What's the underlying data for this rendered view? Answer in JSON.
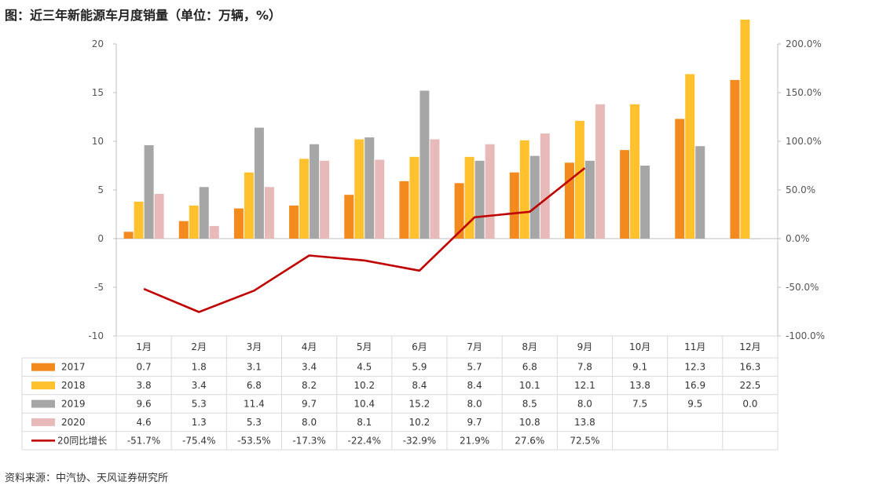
{
  "title": "图：近三年新能源车月度销量（单位：万辆，%）",
  "source": "资料来源：中汽协、天风证券研究所",
  "colors": {
    "2017": "#F28A1E",
    "2018": "#FFC12E",
    "2019": "#A6A6A6",
    "2020": "#E8B9B9",
    "line": "#C00000"
  },
  "chart_data": {
    "type": "bar",
    "categories": [
      "1月",
      "2月",
      "3月",
      "4月",
      "5月",
      "6月",
      "7月",
      "8月",
      "9月",
      "10月",
      "11月",
      "12月"
    ],
    "series": [
      {
        "name": "2017",
        "values": [
          0.7,
          1.8,
          3.1,
          3.4,
          4.5,
          5.9,
          5.7,
          6.8,
          7.8,
          9.1,
          12.3,
          16.3
        ]
      },
      {
        "name": "2018",
        "values": [
          3.8,
          3.4,
          6.8,
          8.2,
          10.2,
          8.4,
          8.4,
          10.1,
          12.1,
          13.8,
          16.9,
          22.5
        ]
      },
      {
        "name": "2019",
        "values": [
          9.6,
          5.3,
          11.4,
          9.7,
          10.4,
          15.2,
          8.0,
          8.5,
          8.0,
          7.5,
          9.5,
          0.0
        ]
      },
      {
        "name": "2020",
        "values": [
          4.6,
          1.3,
          5.3,
          8.0,
          8.1,
          10.2,
          9.7,
          10.8,
          13.8,
          null,
          null,
          null
        ]
      }
    ],
    "line": {
      "name": "20同比增长",
      "values": [
        -51.7,
        -75.4,
        -53.5,
        -17.3,
        -22.4,
        -32.9,
        21.9,
        27.6,
        72.5,
        null,
        null,
        null
      ],
      "labels": [
        "-51.7%",
        "-75.4%",
        "-53.5%",
        "-17.3%",
        "-22.4%",
        "-32.9%",
        "21.9%",
        "27.6%",
        "72.5%",
        "",
        "",
        ""
      ]
    },
    "y_left": {
      "ylim": [
        -10,
        20
      ],
      "ticks": [
        "20",
        "15",
        "10",
        "5",
        "0",
        "-5",
        "-10"
      ]
    },
    "y_right": {
      "ylim": [
        -100,
        200
      ],
      "ticks": [
        "200.0%",
        "150.0%",
        "100.0%",
        "50.0%",
        "0.0%",
        "-50.0%",
        "-100.0%"
      ]
    },
    "table": {
      "rows": [
        {
          "label": "2017",
          "cells": [
            "0.7",
            "1.8",
            "3.1",
            "3.4",
            "4.5",
            "5.9",
            "5.7",
            "6.8",
            "7.8",
            "9.1",
            "12.3",
            "16.3"
          ]
        },
        {
          "label": "2018",
          "cells": [
            "3.8",
            "3.4",
            "6.8",
            "8.2",
            "10.2",
            "8.4",
            "8.4",
            "10.1",
            "12.1",
            "13.8",
            "16.9",
            "22.5"
          ]
        },
        {
          "label": "2019",
          "cells": [
            "9.6",
            "5.3",
            "11.4",
            "9.7",
            "10.4",
            "15.2",
            "8.0",
            "8.5",
            "8.0",
            "7.5",
            "9.5",
            "0.0"
          ]
        },
        {
          "label": "2020",
          "cells": [
            "4.6",
            "1.3",
            "5.3",
            "8.0",
            "8.1",
            "10.2",
            "9.7",
            "10.8",
            "13.8",
            "",
            "",
            ""
          ]
        },
        {
          "label": "20同比增长",
          "cells": [
            "-51.7%",
            "-75.4%",
            "-53.5%",
            "-17.3%",
            "-22.4%",
            "-32.9%",
            "21.9%",
            "27.6%",
            "72.5%",
            "",
            "",
            ""
          ]
        }
      ]
    },
    "grid": false,
    "legend": "table-left"
  }
}
